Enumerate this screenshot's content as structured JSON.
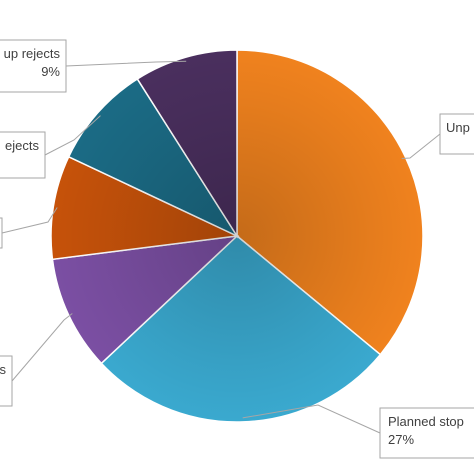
{
  "chart_data": {
    "type": "pie",
    "title": "",
    "slices": [
      {
        "label": "Unp",
        "value": 36,
        "value_label": "",
        "color": "#f0821e"
      },
      {
        "label": "Planned stop",
        "value": 27,
        "value_label": "27%",
        "color": "#3aa9cf"
      },
      {
        "label": "s",
        "value": 10,
        "value_label": "",
        "color": "#7b4fa3"
      },
      {
        "label": "",
        "value": 9,
        "value_label": "",
        "color": "#c6520a"
      },
      {
        "label": "ejects",
        "value": 9,
        "value_label": "",
        "color": "#1b6b85"
      },
      {
        "label": "up rejects",
        "value": 9,
        "value_label": "9%",
        "color": "#4a2f5e"
      }
    ],
    "legend": "none"
  }
}
